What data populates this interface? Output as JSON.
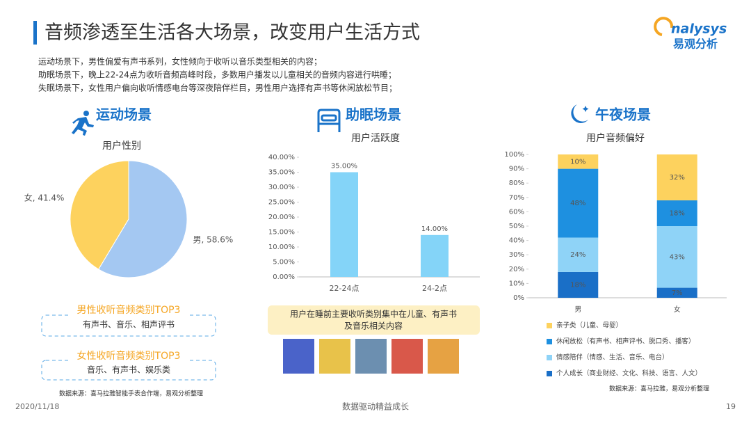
{
  "title": "音频渗透至生活各大场景，改变用户生活方式",
  "logo": {
    "wordmark": "nalysys",
    "name": "易观分析"
  },
  "intro": [
    "运动场景下，男性偏爱有声书系列，女性倾向于收听以音乐类型相关的内容；",
    "助眠场景下，晚上22-24点为收听音频高峰时段，多数用户播发以儿童相关的音频内容进行哄睡；",
    "失眠场景下，女性用户偏向收听情感电台等深夜陪伴栏目，男性用户选择有声书等休闲放松节目；"
  ],
  "sections": [
    {
      "heading": "运动场景"
    },
    {
      "heading": "助眠场景"
    },
    {
      "heading": "午夜场景"
    }
  ],
  "top3": [
    {
      "title": "男性收听音频类别TOP3",
      "items": "有声书、音乐、相声评书"
    },
    {
      "title": "女性收听音频类别TOP3",
      "items": "音乐、有声书、娱乐类"
    }
  ],
  "note": [
    "用户在睡前主要收听类别集中在儿童、有声书",
    "及音乐相关内容"
  ],
  "sources": [
    "数据来源：喜马拉雅智能手表合作端，易观分析整理",
    "数据来源：喜马拉雅，易观分析整理"
  ],
  "footer": {
    "date": "2020/11/18",
    "slogan": "数据驱动精益成长",
    "page": "19"
  },
  "chart_data": [
    {
      "type": "pie",
      "title": "用户性别",
      "values": [
        41.4,
        58.6
      ],
      "value_labels": [
        "女, 41.4%",
        "男, 58.6%"
      ],
      "colors": [
        "#fdd25e",
        "#a4c8f2"
      ]
    },
    {
      "type": "bar",
      "title": "用户活跃度",
      "categories": [
        "22-24点",
        "24-2点"
      ],
      "values": [
        35,
        14
      ],
      "value_labels": [
        "35.00%",
        "14.00%"
      ],
      "color": "#84d4f8",
      "ylim": [
        0,
        40
      ],
      "yticks": [
        {
          "value": 0,
          "label": "0.00%"
        },
        {
          "value": 5,
          "label": "5.00%"
        },
        {
          "value": 10,
          "label": "10.00%"
        },
        {
          "value": 15,
          "label": "15.00%"
        },
        {
          "value": 20,
          "label": "20.00%"
        },
        {
          "value": 25,
          "label": "25.00%"
        },
        {
          "value": 30,
          "label": "30.00%"
        },
        {
          "value": 35,
          "label": "35.00%"
        },
        {
          "value": 40,
          "label": "40.00%"
        }
      ],
      "grid": false
    },
    {
      "type": "stacked_bar",
      "title": "用户音频偏好",
      "categories": [
        "男",
        "女"
      ],
      "series": [
        {
          "name": "个人成长（商业财经、文化、科技、语言、人文）",
          "color": "#1a6fc7",
          "values": [
            18,
            7
          ],
          "value_labels": [
            "18%",
            "7%"
          ]
        },
        {
          "name": "情感陪伴（情感、生活、音乐、电台）",
          "color": "#8fd3f7",
          "values": [
            24,
            43
          ],
          "value_labels": [
            "24%",
            "43%"
          ]
        },
        {
          "name": "休闲放松（有声书、相声评书、脱口秀、播客）",
          "color": "#1e90e0",
          "values": [
            48,
            18
          ],
          "value_labels": [
            "48%",
            "18%"
          ]
        },
        {
          "name": "亲子类（儿童、母婴）",
          "color": "#fdd25e",
          "values": [
            10,
            32
          ],
          "value_labels": [
            "10%",
            "32%"
          ]
        }
      ],
      "ylim": [
        0,
        100
      ],
      "yticks": [
        {
          "value": 0,
          "label": "0%"
        },
        {
          "value": 10,
          "label": "10%"
        },
        {
          "value": 20,
          "label": "20%"
        },
        {
          "value": 30,
          "label": "30%"
        },
        {
          "value": 40,
          "label": "40%"
        },
        {
          "value": 50,
          "label": "50%"
        },
        {
          "value": 60,
          "label": "60%"
        },
        {
          "value": 70,
          "label": "70%"
        },
        {
          "value": 80,
          "label": "80%"
        },
        {
          "value": 90,
          "label": "90%"
        },
        {
          "value": 100,
          "label": "100%"
        }
      ],
      "grid": false
    }
  ]
}
